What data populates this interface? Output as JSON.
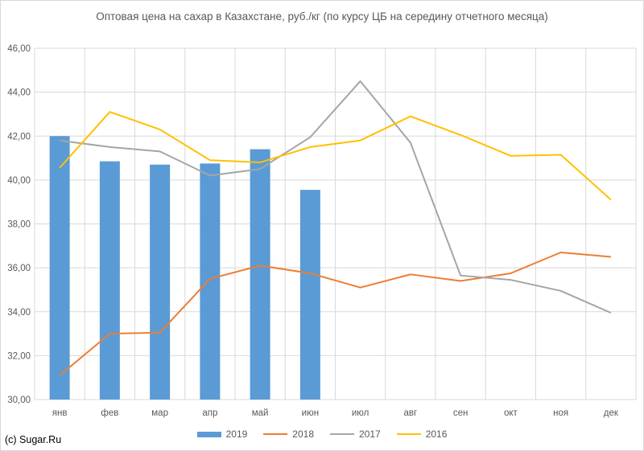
{
  "chart_data": {
    "type": "bar",
    "title": "Оптовая цена на сахар в Казахстане, руб./кг (по курсу ЦБ на середину отчетного месяца)",
    "categories": [
      "янв",
      "фев",
      "мар",
      "апр",
      "май",
      "июн",
      "июл",
      "авг",
      "сен",
      "окт",
      "ноя",
      "дек"
    ],
    "ylim": [
      30,
      46
    ],
    "yticks": [
      "30,00",
      "32,00",
      "34,00",
      "36,00",
      "38,00",
      "40,00",
      "42,00",
      "44,00",
      "46,00"
    ],
    "grid": true,
    "legend_position": "bottom",
    "series": [
      {
        "name": "2019",
        "kind": "bar",
        "color": "#5b9bd5",
        "values": [
          42.0,
          40.85,
          40.7,
          40.75,
          41.4,
          39.55,
          null,
          null,
          null,
          null,
          null,
          null
        ]
      },
      {
        "name": "2018",
        "kind": "line",
        "color": "#ed7d31",
        "values": [
          31.1,
          33.0,
          33.05,
          35.5,
          36.1,
          35.75,
          35.1,
          35.7,
          35.4,
          35.75,
          36.7,
          36.5
        ]
      },
      {
        "name": "2017",
        "kind": "line",
        "color": "#a5a5a5",
        "values": [
          41.8,
          41.5,
          41.3,
          40.2,
          40.5,
          41.95,
          44.5,
          41.7,
          35.65,
          35.45,
          34.95,
          33.95
        ]
      },
      {
        "name": "2016",
        "kind": "line",
        "color": "#ffc000",
        "values": [
          40.55,
          43.1,
          42.3,
          40.9,
          40.8,
          41.5,
          41.8,
          42.9,
          42.05,
          41.1,
          41.15,
          39.1
        ]
      }
    ]
  },
  "credit": "(c) Sugar.Ru"
}
